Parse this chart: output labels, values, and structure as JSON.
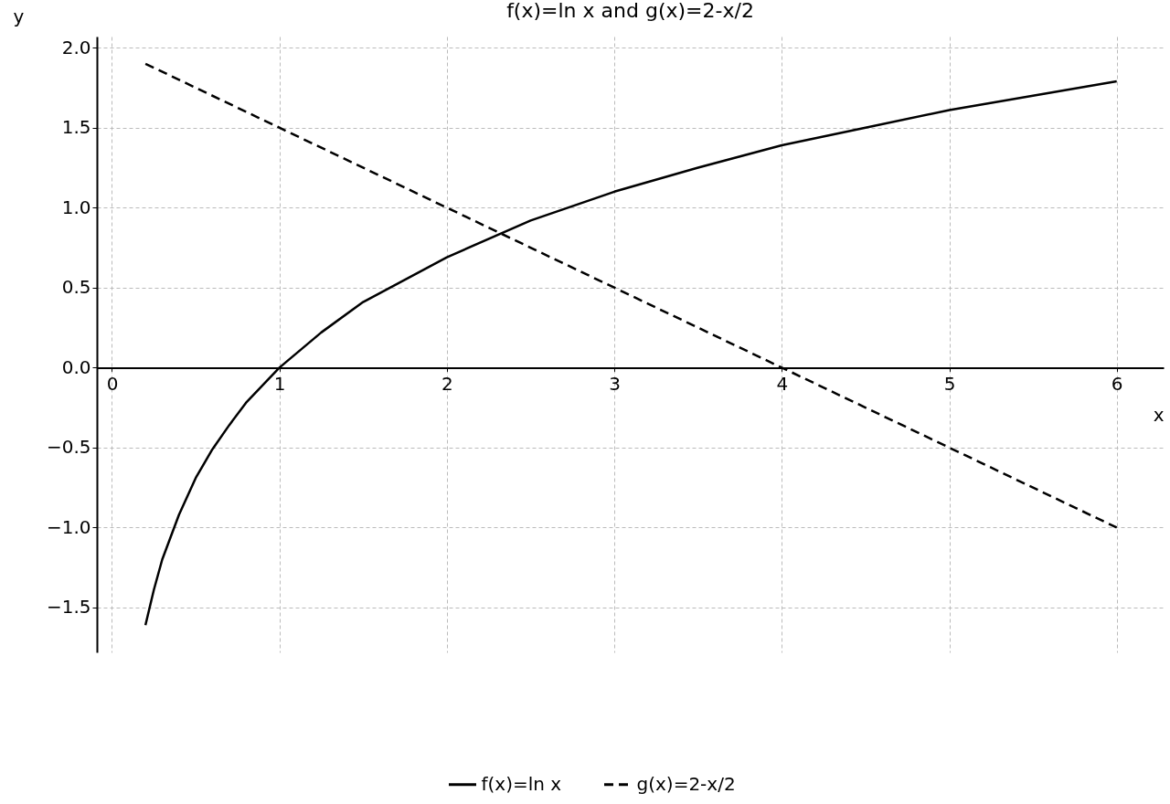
{
  "chart_data": {
    "type": "line",
    "title": "f(x)=ln x and g(x)=2-x/2",
    "xlabel": "x",
    "ylabel": "y",
    "xlim": [
      -0.09,
      6.28
    ],
    "ylim": [
      -1.78,
      2.07
    ],
    "xticks": [
      0,
      1,
      2,
      3,
      4,
      5,
      6
    ],
    "yticks": [
      {
        "value": -1.5,
        "label": "−1.5"
      },
      {
        "value": -1,
        "label": "−1.0"
      },
      {
        "value": -0.5,
        "label": "−0.5"
      },
      {
        "value": 0,
        "label": "0.0"
      },
      0.5,
      {
        "value": 1,
        "label": "1.0"
      },
      1.5,
      {
        "value": 2,
        "label": "2.0"
      }
    ],
    "grid": true,
    "legend": "bottom",
    "marker": "none",
    "series": [
      {
        "name": "f(x)=ln x",
        "color": "#000000",
        "line_style": "solid",
        "x": [
          0.2,
          0.25,
          0.3,
          0.4,
          0.5,
          0.6,
          0.7,
          0.8,
          1,
          1.25,
          1.5,
          2,
          2.5,
          3,
          3.5,
          4,
          4.5,
          5,
          5.5,
          6
        ],
        "values": [
          -1.61,
          -1.39,
          -1.2,
          -0.92,
          -0.69,
          -0.51,
          -0.36,
          -0.22,
          0.0,
          0.22,
          0.41,
          0.69,
          0.92,
          1.1,
          1.25,
          1.39,
          1.5,
          1.61,
          1.7,
          1.79
        ]
      },
      {
        "name": "g(x)=2-x/2",
        "color": "#000000",
        "line_style": "dashed",
        "x": [
          0.2,
          6
        ],
        "values": [
          1.9,
          -1.0
        ]
      }
    ]
  }
}
